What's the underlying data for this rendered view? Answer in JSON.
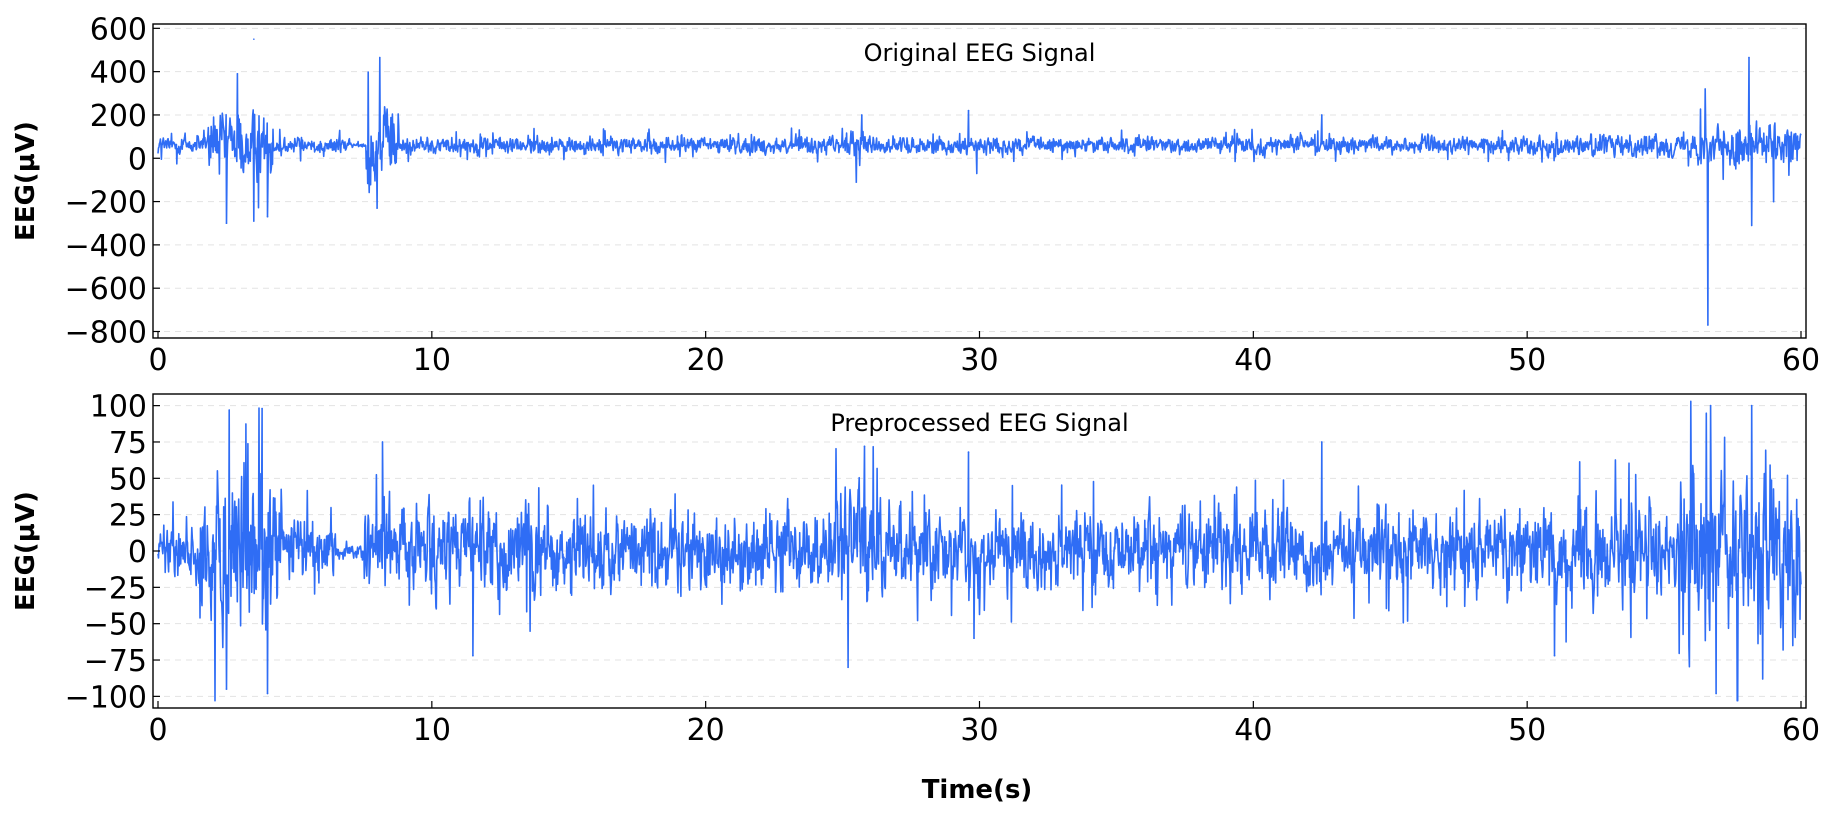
{
  "chart_data": [
    {
      "type": "line",
      "title": "Original EEG Signal",
      "xlabel": "",
      "ylabel": "EEG(µV)",
      "xlim": [
        0,
        60
      ],
      "ylim": [
        -830,
        620
      ],
      "xticks": [
        0,
        10,
        20,
        30,
        40,
        50,
        60
      ],
      "yticks": [
        -800,
        -600,
        -400,
        -200,
        0,
        200,
        400,
        600
      ],
      "ytick_labels": [
        "−800",
        "−600",
        "−400",
        "−200",
        "0",
        "200",
        "400",
        "600"
      ],
      "grid": "horizontal dashed",
      "color": "#2f6df5",
      "baseline": 60,
      "envelope": [
        {
          "t": [
            0,
            1.8
          ],
          "amp": 45
        },
        {
          "t": [
            1.8,
            4.2
          ],
          "amp": 150
        },
        {
          "t": [
            4.2,
            7.0
          ],
          "amp": 40
        },
        {
          "t": [
            7.0,
            7.6
          ],
          "amp": 10
        },
        {
          "t": [
            7.6,
            8.8
          ],
          "amp": 170
        },
        {
          "t": [
            8.8,
            25.0
          ],
          "amp": 40
        },
        {
          "t": [
            25.0,
            26.0
          ],
          "amp": 70
        },
        {
          "t": [
            26.0,
            50.5
          ],
          "amp": 38
        },
        {
          "t": [
            50.5,
            56.0
          ],
          "amp": 50
        },
        {
          "t": [
            56.0,
            60.0
          ],
          "amp": 90
        }
      ],
      "peaks": [
        {
          "x": 2.5,
          "y": -300
        },
        {
          "x": 2.9,
          "y": 390
        },
        {
          "x": 3.5,
          "y": 550
        },
        {
          "x": 3.5,
          "y": -290
        },
        {
          "x": 4.0,
          "y": -270
        },
        {
          "x": 8.1,
          "y": 465
        },
        {
          "x": 8.0,
          "y": -230
        },
        {
          "x": 25.5,
          "y": -110
        },
        {
          "x": 25.7,
          "y": 200
        },
        {
          "x": 29.6,
          "y": 220
        },
        {
          "x": 29.9,
          "y": -70
        },
        {
          "x": 42.5,
          "y": 200
        },
        {
          "x": 56.5,
          "y": 320
        },
        {
          "x": 56.6,
          "y": -770
        },
        {
          "x": 58.1,
          "y": 465
        },
        {
          "x": 58.2,
          "y": -310
        },
        {
          "x": 59.0,
          "y": -200
        }
      ]
    },
    {
      "type": "line",
      "title": "Preprocessed EEG Signal",
      "xlabel": "Time(s)",
      "ylabel": "EEG(µV)",
      "xlim": [
        0,
        60
      ],
      "ylim": [
        -108,
        108
      ],
      "xticks": [
        0,
        10,
        20,
        30,
        40,
        50,
        60
      ],
      "yticks": [
        -100,
        -75,
        -50,
        -25,
        0,
        25,
        50,
        75,
        100
      ],
      "ytick_labels": [
        "−100",
        "−75",
        "−50",
        "−25",
        "0",
        "25",
        "50",
        "75",
        "100"
      ],
      "grid": "horizontal dashed",
      "color": "#2f6df5",
      "baseline": 0,
      "envelope": [
        {
          "t": [
            0,
            1.5
          ],
          "amp": 18
        },
        {
          "t": [
            1.5,
            4.5
          ],
          "amp": 55
        },
        {
          "t": [
            4.5,
            6.5
          ],
          "amp": 22
        },
        {
          "t": [
            6.5,
            7.5
          ],
          "amp": 6
        },
        {
          "t": [
            7.5,
            9.5
          ],
          "amp": 30
        },
        {
          "t": [
            9.5,
            24.5
          ],
          "amp": 28
        },
        {
          "t": [
            24.5,
            26.5
          ],
          "amp": 38
        },
        {
          "t": [
            26.5,
            50.5
          ],
          "amp": 26
        },
        {
          "t": [
            50.5,
            55.5
          ],
          "amp": 32
        },
        {
          "t": [
            55.5,
            60.0
          ],
          "amp": 55
        }
      ],
      "peaks": [
        {
          "x": 2.5,
          "y": -95
        },
        {
          "x": 2.6,
          "y": 97
        },
        {
          "x": 3.8,
          "y": 98
        },
        {
          "x": 4.0,
          "y": -98
        },
        {
          "x": 8.2,
          "y": 75
        },
        {
          "x": 11.5,
          "y": -72
        },
        {
          "x": 25.2,
          "y": -80
        },
        {
          "x": 25.8,
          "y": 72
        },
        {
          "x": 29.6,
          "y": 68
        },
        {
          "x": 29.8,
          "y": -60
        },
        {
          "x": 42.5,
          "y": 75
        },
        {
          "x": 51.0,
          "y": -72
        },
        {
          "x": 56.7,
          "y": 100
        },
        {
          "x": 56.9,
          "y": -98
        },
        {
          "x": 58.2,
          "y": 100
        },
        {
          "x": 58.6,
          "y": -88
        },
        {
          "x": 59.7,
          "y": -65
        }
      ]
    }
  ]
}
